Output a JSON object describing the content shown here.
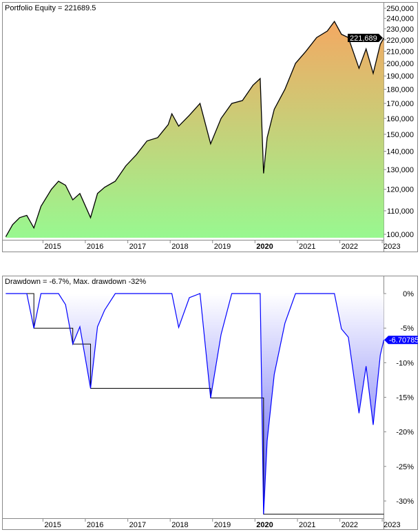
{
  "chart_data": [
    {
      "type": "area",
      "title": "Portfolio Equity = 221689.5",
      "y_scale": "log",
      "ylim": [
        100000,
        250000
      ],
      "y_ticks": [
        "100,000",
        "110,000",
        "120,000",
        "130,000",
        "140,000",
        "150,000",
        "160,000",
        "170,000",
        "180,000",
        "190,000",
        "200,000",
        "210,000",
        "220,000",
        "230,000",
        "240,000",
        "250,000"
      ],
      "x_ticks": [
        "2015",
        "2016",
        "2017",
        "2018",
        "2019",
        "2020",
        "2021",
        "2022",
        "2023"
      ],
      "bold_tick": "2020",
      "last_value_label": "221,689",
      "colors": {
        "line": "#000000",
        "fill_top": "#f4a862",
        "fill_bottom": "#98f890"
      },
      "x": [
        "2014-02",
        "2014-04",
        "2014-06",
        "2014-08",
        "2014-10",
        "2014-12",
        "2015-03",
        "2015-05",
        "2015-07",
        "2015-09",
        "2015-11",
        "2016-02",
        "2016-04",
        "2016-06",
        "2016-09",
        "2016-12",
        "2017-03",
        "2017-06",
        "2017-09",
        "2017-12",
        "2018-01",
        "2018-03",
        "2018-06",
        "2018-09",
        "2018-12",
        "2019-03",
        "2019-06",
        "2019-09",
        "2019-12",
        "2020-02",
        "2020-03",
        "2020-04",
        "2020-06",
        "2020-09",
        "2020-12",
        "2021-03",
        "2021-06",
        "2021-09",
        "2021-11",
        "2022-01",
        "2022-03",
        "2022-06",
        "2022-08",
        "2022-10",
        "2022-12",
        "2023-01"
      ],
      "values": [
        99000,
        104000,
        107000,
        108000,
        102600,
        112000,
        120000,
        124000,
        122000,
        115000,
        118000,
        107000,
        118000,
        121000,
        124000,
        132000,
        138000,
        146000,
        148000,
        156000,
        163000,
        155000,
        162000,
        170000,
        144300,
        160000,
        170000,
        172000,
        183000,
        188000,
        128000,
        148000,
        166000,
        180000,
        200000,
        210000,
        222000,
        228000,
        237000,
        225000,
        222000,
        196000,
        212000,
        192000,
        216000,
        221689.5
      ]
    },
    {
      "type": "area",
      "title": "Drawdown = -6.7%, Max. drawdown -32%",
      "ylim": [
        -32,
        0
      ],
      "y_ticks": [
        "0%",
        "-5%",
        "-10%",
        "-15%",
        "-20%",
        "-25%",
        "-30%"
      ],
      "x_ticks": [
        "2015",
        "2016",
        "2017",
        "2018",
        "2019",
        "2020",
        "2021",
        "2022",
        "2023"
      ],
      "bold_tick": "2020",
      "last_value_label": "-6.70785",
      "colors": {
        "line": "#0000ff",
        "fill_top": "#ffffff",
        "fill_bottom": "#5a5af5",
        "max_drawdown_line": "#000000"
      },
      "x": [
        "2014-02",
        "2014-04",
        "2014-06",
        "2014-08",
        "2014-10",
        "2014-12",
        "2015-03",
        "2015-05",
        "2015-07",
        "2015-09",
        "2015-11",
        "2016-02",
        "2016-04",
        "2016-06",
        "2016-09",
        "2016-12",
        "2017-03",
        "2017-06",
        "2017-09",
        "2017-12",
        "2018-01",
        "2018-03",
        "2018-06",
        "2018-09",
        "2018-12",
        "2019-03",
        "2019-06",
        "2019-09",
        "2019-12",
        "2020-02",
        "2020-03",
        "2020-04",
        "2020-06",
        "2020-09",
        "2020-12",
        "2021-03",
        "2021-06",
        "2021-09",
        "2021-11",
        "2022-01",
        "2022-03",
        "2022-06",
        "2022-08",
        "2022-10",
        "2022-12",
        "2023-01"
      ],
      "values": [
        0,
        0,
        0,
        0,
        -5.0,
        0,
        0,
        0,
        -1.6,
        -7.3,
        -4.8,
        -13.7,
        -4.8,
        -2.4,
        0,
        0,
        0,
        0,
        0,
        0,
        0,
        -4.9,
        -0.6,
        0,
        -15.1,
        -5.9,
        0,
        0,
        0,
        0,
        -31.9,
        -21.3,
        -11.7,
        -4.3,
        0,
        0,
        0,
        0,
        0,
        -5.1,
        -6.3,
        -17.3,
        -10.5,
        -19.0,
        -8.9,
        -6.7
      ]
    }
  ]
}
